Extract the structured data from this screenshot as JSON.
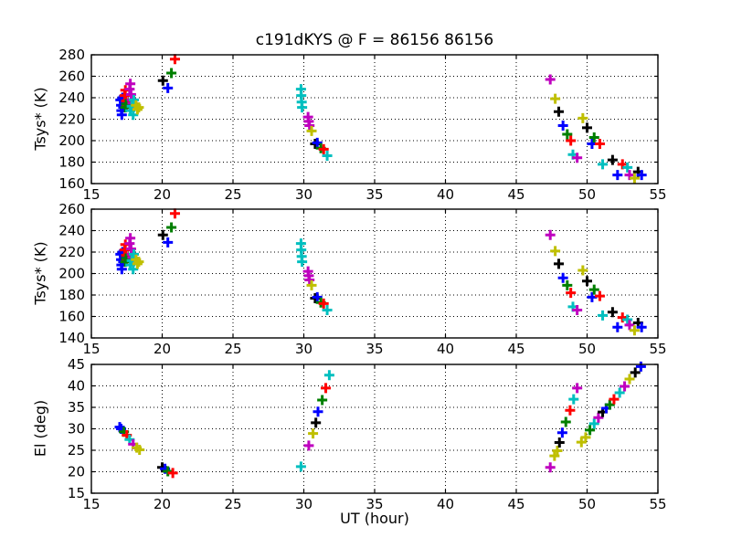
{
  "figure": {
    "title": "c191dKYS @ F = 86156 86156",
    "xlabel": "UT (hour)",
    "background": "#ffffff",
    "frame_color": "#000000"
  },
  "palette": {
    "b": "#0000ff",
    "g": "#007f00",
    "r": "#ff0000",
    "c": "#00bfbf",
    "m": "#bf00bf",
    "y": "#bfbf00",
    "k": "#000000"
  },
  "chart_data": [
    {
      "type": "scatter",
      "name": "tsys-upper",
      "ylabel": "Tsys* (K)",
      "xlim": [
        15,
        55
      ],
      "ylim": [
        160,
        280
      ],
      "xticks": [
        15,
        20,
        25,
        30,
        35,
        40,
        45,
        50,
        55
      ],
      "yticks": [
        160,
        180,
        200,
        220,
        240,
        260,
        280
      ],
      "grid": true,
      "marker": "+",
      "points": [
        [
          17.05,
          238,
          "b"
        ],
        [
          17.1,
          233,
          "b"
        ],
        [
          17.12,
          228,
          "b"
        ],
        [
          17.15,
          224,
          "b"
        ],
        [
          17.2,
          240,
          "b"
        ],
        [
          17.25,
          231,
          "b"
        ],
        [
          17.3,
          236,
          "b"
        ],
        [
          17.35,
          242,
          "r"
        ],
        [
          17.4,
          247,
          "r"
        ],
        [
          17.45,
          237,
          "r"
        ],
        [
          17.5,
          233,
          "r"
        ],
        [
          17.4,
          231,
          "g"
        ],
        [
          17.45,
          234,
          "g"
        ],
        [
          17.7,
          248,
          "m"
        ],
        [
          17.75,
          253,
          "m"
        ],
        [
          17.8,
          243,
          "m"
        ],
        [
          17.85,
          238,
          "m"
        ],
        [
          17.9,
          235,
          "m"
        ],
        [
          17.75,
          228,
          "c"
        ],
        [
          17.85,
          232,
          "c"
        ],
        [
          17.95,
          224,
          "c"
        ],
        [
          18.0,
          238,
          "c"
        ],
        [
          18.15,
          233,
          "y"
        ],
        [
          18.25,
          229,
          "y"
        ],
        [
          18.35,
          231,
          "y"
        ],
        [
          20.05,
          256,
          "k"
        ],
        [
          20.4,
          249,
          "b"
        ],
        [
          20.65,
          263,
          "g"
        ],
        [
          20.9,
          276,
          "r"
        ],
        [
          29.8,
          248,
          "c"
        ],
        [
          29.82,
          242,
          "c"
        ],
        [
          29.85,
          236,
          "c"
        ],
        [
          29.88,
          231,
          "c"
        ],
        [
          30.3,
          222,
          "m"
        ],
        [
          30.35,
          218,
          "m"
        ],
        [
          30.4,
          214,
          "m"
        ],
        [
          30.55,
          209,
          "y"
        ],
        [
          30.8,
          197,
          "k"
        ],
        [
          30.95,
          198,
          "b"
        ],
        [
          31.2,
          193,
          "g"
        ],
        [
          31.4,
          192,
          "r"
        ],
        [
          31.65,
          186,
          "c"
        ],
        [
          47.4,
          257,
          "m"
        ],
        [
          47.75,
          239,
          "y"
        ],
        [
          48.0,
          227,
          "k"
        ],
        [
          48.3,
          214,
          "b"
        ],
        [
          48.6,
          206,
          "g"
        ],
        [
          48.85,
          200,
          "r"
        ],
        [
          49.0,
          187,
          "c"
        ],
        [
          49.3,
          184,
          "m"
        ],
        [
          49.7,
          221,
          "y"
        ],
        [
          50.0,
          212,
          "k"
        ],
        [
          50.35,
          197,
          "b"
        ],
        [
          50.5,
          203,
          "g"
        ],
        [
          50.9,
          197,
          "r"
        ],
        [
          51.1,
          178,
          "c"
        ],
        [
          51.8,
          182,
          "k"
        ],
        [
          52.15,
          168,
          "b"
        ],
        [
          52.5,
          178,
          "r"
        ],
        [
          52.85,
          175,
          "c"
        ],
        [
          53.0,
          168,
          "m"
        ],
        [
          53.35,
          165,
          "y"
        ],
        [
          53.6,
          171,
          "k"
        ],
        [
          53.85,
          168,
          "b"
        ]
      ]
    },
    {
      "type": "scatter",
      "name": "tsys-lower",
      "ylabel": "Tsys* (K)",
      "xlim": [
        15,
        55
      ],
      "ylim": [
        140,
        260
      ],
      "xticks": [
        15,
        20,
        25,
        30,
        35,
        40,
        45,
        50,
        55
      ],
      "yticks": [
        140,
        160,
        180,
        200,
        220,
        240,
        260
      ],
      "grid": true,
      "marker": "+",
      "points": [
        [
          17.05,
          218,
          "b"
        ],
        [
          17.1,
          213,
          "b"
        ],
        [
          17.12,
          208,
          "b"
        ],
        [
          17.15,
          204,
          "b"
        ],
        [
          17.2,
          220,
          "b"
        ],
        [
          17.25,
          211,
          "b"
        ],
        [
          17.3,
          216,
          "b"
        ],
        [
          17.35,
          222,
          "r"
        ],
        [
          17.4,
          227,
          "r"
        ],
        [
          17.45,
          217,
          "r"
        ],
        [
          17.5,
          213,
          "r"
        ],
        [
          17.4,
          211,
          "g"
        ],
        [
          17.45,
          214,
          "g"
        ],
        [
          17.7,
          228,
          "m"
        ],
        [
          17.75,
          233,
          "m"
        ],
        [
          17.8,
          223,
          "m"
        ],
        [
          17.85,
          218,
          "m"
        ],
        [
          17.9,
          215,
          "m"
        ],
        [
          17.75,
          208,
          "c"
        ],
        [
          17.85,
          212,
          "c"
        ],
        [
          17.95,
          204,
          "c"
        ],
        [
          18.0,
          218,
          "c"
        ],
        [
          18.15,
          213,
          "y"
        ],
        [
          18.25,
          209,
          "y"
        ],
        [
          18.35,
          211,
          "y"
        ],
        [
          20.05,
          236,
          "k"
        ],
        [
          20.4,
          229,
          "b"
        ],
        [
          20.65,
          243,
          "g"
        ],
        [
          20.9,
          256,
          "r"
        ],
        [
          29.8,
          228,
          "c"
        ],
        [
          29.82,
          222,
          "c"
        ],
        [
          29.85,
          216,
          "c"
        ],
        [
          29.88,
          211,
          "c"
        ],
        [
          30.3,
          202,
          "m"
        ],
        [
          30.35,
          198,
          "m"
        ],
        [
          30.4,
          194,
          "m"
        ],
        [
          30.55,
          189,
          "y"
        ],
        [
          30.8,
          177,
          "k"
        ],
        [
          30.95,
          178,
          "b"
        ],
        [
          31.2,
          173,
          "g"
        ],
        [
          31.4,
          172,
          "r"
        ],
        [
          31.65,
          166,
          "c"
        ],
        [
          47.4,
          236,
          "m"
        ],
        [
          47.75,
          221,
          "y"
        ],
        [
          48.0,
          209,
          "k"
        ],
        [
          48.3,
          196,
          "b"
        ],
        [
          48.6,
          189,
          "g"
        ],
        [
          48.85,
          182,
          "r"
        ],
        [
          49.0,
          169,
          "c"
        ],
        [
          49.3,
          166,
          "m"
        ],
        [
          49.7,
          203,
          "y"
        ],
        [
          50.0,
          193,
          "k"
        ],
        [
          50.35,
          178,
          "b"
        ],
        [
          50.5,
          185,
          "g"
        ],
        [
          50.9,
          179,
          "r"
        ],
        [
          51.1,
          161,
          "c"
        ],
        [
          51.8,
          164,
          "k"
        ],
        [
          52.15,
          150,
          "b"
        ],
        [
          52.5,
          159,
          "r"
        ],
        [
          52.85,
          157,
          "c"
        ],
        [
          53.0,
          152,
          "m"
        ],
        [
          53.35,
          147,
          "y"
        ],
        [
          53.6,
          154,
          "k"
        ],
        [
          53.85,
          150,
          "b"
        ]
      ]
    },
    {
      "type": "scatter",
      "name": "elevation",
      "ylabel": "El (deg)",
      "xlim": [
        15,
        55
      ],
      "ylim": [
        15,
        45
      ],
      "xticks": [
        15,
        20,
        25,
        30,
        35,
        40,
        45,
        50,
        55
      ],
      "yticks": [
        15,
        20,
        25,
        30,
        35,
        40,
        45
      ],
      "grid": true,
      "marker": "+",
      "points": [
        [
          17.0,
          30.4,
          "b"
        ],
        [
          17.1,
          30.0,
          "b"
        ],
        [
          17.3,
          29.3,
          "g"
        ],
        [
          17.5,
          28.5,
          "r"
        ],
        [
          17.7,
          27.5,
          "c"
        ],
        [
          17.95,
          26.4,
          "m"
        ],
        [
          18.2,
          25.6,
          "y"
        ],
        [
          18.4,
          25.1,
          "y"
        ],
        [
          20.0,
          21.0,
          "k"
        ],
        [
          20.2,
          20.7,
          "b"
        ],
        [
          20.4,
          20.1,
          "g"
        ],
        [
          20.75,
          19.7,
          "r"
        ],
        [
          29.8,
          21.2,
          "c"
        ],
        [
          30.35,
          26.1,
          "m"
        ],
        [
          30.65,
          28.9,
          "y"
        ],
        [
          30.85,
          31.4,
          "k"
        ],
        [
          31.0,
          34.0,
          "b"
        ],
        [
          31.3,
          36.7,
          "g"
        ],
        [
          31.55,
          39.5,
          "r"
        ],
        [
          31.8,
          42.5,
          "c"
        ],
        [
          47.4,
          21.0,
          "m"
        ],
        [
          47.7,
          23.7,
          "y"
        ],
        [
          47.9,
          24.9,
          "y"
        ],
        [
          48.05,
          26.8,
          "k"
        ],
        [
          48.25,
          29.1,
          "b"
        ],
        [
          48.5,
          31.6,
          "g"
        ],
        [
          48.8,
          34.3,
          "r"
        ],
        [
          49.05,
          36.9,
          "c"
        ],
        [
          49.3,
          39.5,
          "m"
        ],
        [
          49.6,
          26.9,
          "y"
        ],
        [
          49.9,
          28.0,
          "y"
        ],
        [
          50.2,
          29.7,
          "g"
        ],
        [
          50.5,
          31.2,
          "c"
        ],
        [
          50.8,
          32.6,
          "m"
        ],
        [
          51.1,
          33.9,
          "k"
        ],
        [
          51.35,
          34.8,
          "b"
        ],
        [
          51.6,
          35.6,
          "g"
        ],
        [
          51.9,
          36.9,
          "r"
        ],
        [
          52.3,
          38.4,
          "c"
        ],
        [
          52.65,
          39.9,
          "m"
        ],
        [
          53.0,
          41.6,
          "y"
        ],
        [
          53.4,
          43.1,
          "k"
        ],
        [
          53.8,
          44.5,
          "b"
        ]
      ]
    }
  ]
}
